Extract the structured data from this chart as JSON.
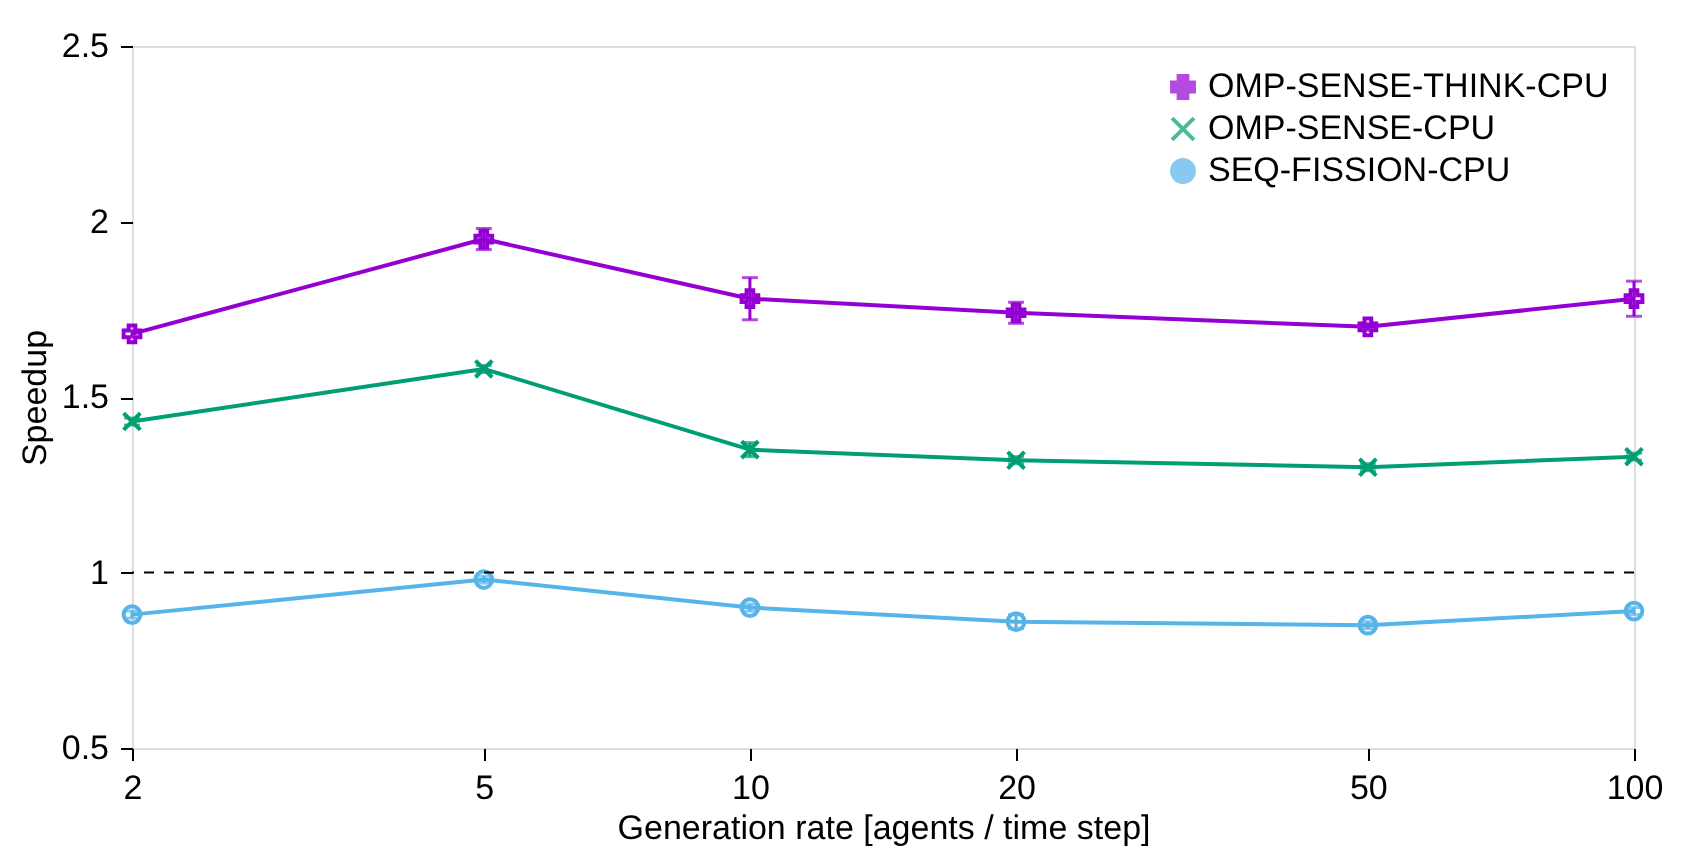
{
  "chart_data": {
    "type": "line",
    "xlabel": "Generation rate [agents / time step]",
    "ylabel": "Speedup",
    "x": [
      2,
      5,
      10,
      20,
      50,
      100
    ],
    "log": "x",
    "xlim": [
      2,
      100
    ],
    "xticks": [
      2,
      5,
      10,
      20,
      50,
      100
    ],
    "ylim": [
      0.5,
      2.5
    ],
    "yticks": [
      0.5,
      1,
      1.5,
      2,
      2.5
    ],
    "grid": false,
    "legend": "top right",
    "line_style": "solid",
    "series": [
      {
        "name": "OMP-SENSE-THINK-CPU",
        "color": "#9400d3",
        "marker": "plus",
        "values": [
          1.68,
          1.95,
          1.78,
          1.74,
          1.7,
          1.78
        ],
        "errors": [
          0.01,
          0.03,
          0.06,
          0.03,
          0.01,
          0.05
        ]
      },
      {
        "name": "OMP-SENSE-CPU",
        "color": "#009e73",
        "marker": "cross",
        "values": [
          1.43,
          1.58,
          1.35,
          1.32,
          1.3,
          1.33
        ],
        "errors": [
          0.01,
          0.01,
          0.02,
          0.01,
          0.01,
          0.01
        ]
      },
      {
        "name": "SEQ-FISSION-CPU",
        "color": "#56b4e9",
        "marker": "circle",
        "values": [
          0.88,
          0.98,
          0.9,
          0.86,
          0.85,
          0.89
        ],
        "errors": [
          0.01,
          0.01,
          0.01,
          0.02,
          0.01,
          0.01
        ]
      }
    ],
    "ref_lines": [
      {
        "axis": "y",
        "value": 1,
        "color": "#000000",
        "line_style": "dashed"
      }
    ]
  }
}
